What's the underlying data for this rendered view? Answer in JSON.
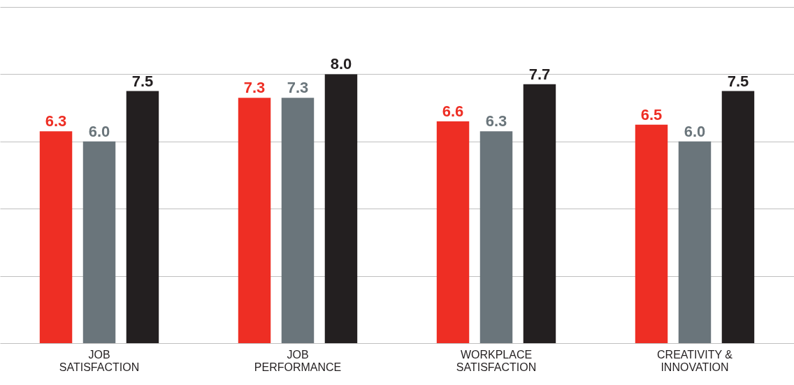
{
  "chart_data": {
    "type": "bar",
    "categories": [
      "JOB\nSATISFACTION",
      "JOB\nPERFORMANCE",
      "WORKPLACE\nSATISFACTION",
      "CREATIVITY &\nINNOVATION"
    ],
    "series": [
      {
        "color": "#ee2e24",
        "values": [
          6.3,
          7.3,
          6.6,
          6.5
        ],
        "value_labels": [
          "6.3",
          "7.3",
          "6.6",
          "6.5"
        ]
      },
      {
        "color": "#6a757b",
        "values": [
          6.0,
          7.3,
          6.3,
          6.0
        ],
        "value_labels": [
          "6.0",
          "7.3",
          "6.3",
          "6.0"
        ]
      },
      {
        "color": "#231f20",
        "values": [
          7.5,
          8.0,
          7.7,
          7.5
        ],
        "value_labels": [
          "7.5",
          "8.0",
          "7.7",
          "7.5"
        ]
      }
    ],
    "ylim": [
      0,
      10
    ],
    "yticks": [
      {
        "value": 0,
        "label": null
      },
      {
        "value": 2,
        "label": null
      },
      {
        "value": 4,
        "label": null
      },
      {
        "value": 6,
        "label": null
      },
      {
        "value": 8,
        "label": null
      },
      {
        "value": 10,
        "label": null
      }
    ],
    "grid": "y",
    "tick_labels": "x"
  }
}
